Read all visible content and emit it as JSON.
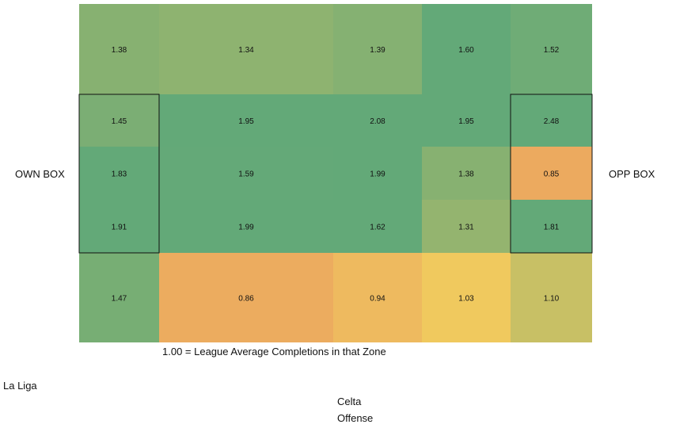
{
  "labels": {
    "own_box": "OWN BOX",
    "opp_box": "OPP BOX",
    "footnote": "1.00 = League Average Completions in that Zone",
    "league": "La Liga",
    "team": "Celta",
    "phase": "Offense"
  },
  "chart_data": {
    "type": "heatmap",
    "title": "",
    "xlabel": "",
    "ylabel": "",
    "grid": false,
    "legend": "none",
    "colors": {
      "low": "#ecaa5f",
      "mid": "#f0c95e",
      "high": "#63a978"
    },
    "rows": [
      [
        "1.38",
        "1.34",
        "1.39",
        "1.60",
        "1.52"
      ],
      [
        "1.45",
        "1.95",
        "2.08",
        "1.95",
        "2.48"
      ],
      [
        "1.83",
        "1.59",
        "1.99",
        "1.38",
        "0.85"
      ],
      [
        "1.91",
        "1.99",
        "1.62",
        "1.31",
        "1.81"
      ],
      [
        "1.47",
        "0.86",
        "0.94",
        "1.03",
        "1.10"
      ]
    ],
    "values": [
      [
        1.38,
        1.34,
        1.39,
        1.6,
        1.52
      ],
      [
        1.45,
        1.95,
        2.08,
        1.95,
        2.48
      ],
      [
        1.83,
        1.59,
        1.99,
        1.38,
        0.85
      ],
      [
        1.91,
        1.99,
        1.62,
        1.31,
        1.81
      ],
      [
        1.47,
        0.86,
        0.94,
        1.03,
        1.1
      ]
    ],
    "highlight_boxes": [
      "own-box",
      "opp-box"
    ]
  }
}
